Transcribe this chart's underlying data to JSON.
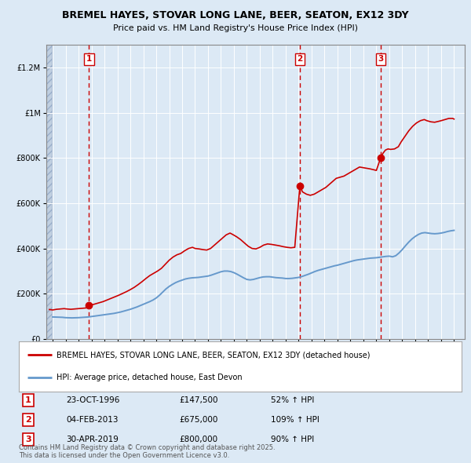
{
  "title": "BREMEL HAYES, STOVAR LONG LANE, BEER, SEATON, EX12 3DY",
  "subtitle": "Price paid vs. HM Land Registry's House Price Index (HPI)",
  "bg_color": "#dce9f5",
  "plot_bg_color": "#dce9f5",
  "hatch_color": "#c0cfe0",
  "transactions": [
    {
      "num": 1,
      "date_x": 1996.81,
      "price": 147500,
      "label": "23-OCT-1996",
      "price_str": "£147,500",
      "pct": "52% ↑ HPI"
    },
    {
      "num": 2,
      "date_x": 2013.09,
      "price": 675000,
      "label": "04-FEB-2013",
      "price_str": "£675,000",
      "pct": "109% ↑ HPI"
    },
    {
      "num": 3,
      "date_x": 2019.33,
      "price": 800000,
      "label": "30-APR-2019",
      "price_str": "£800,000",
      "pct": "90% ↑ HPI"
    }
  ],
  "house_line_color": "#cc0000",
  "hpi_line_color": "#6699cc",
  "ylim": [
    0,
    1300000
  ],
  "xlim_start": 1993.5,
  "xlim_end": 2025.8,
  "hatch_end": 1993.92,
  "xticks": [
    1994,
    1995,
    1996,
    1997,
    1998,
    1999,
    2000,
    2001,
    2002,
    2003,
    2004,
    2005,
    2006,
    2007,
    2008,
    2009,
    2010,
    2011,
    2012,
    2013,
    2014,
    2015,
    2016,
    2017,
    2018,
    2019,
    2020,
    2021,
    2022,
    2023,
    2024,
    2025
  ],
  "yticks": [
    0,
    200000,
    400000,
    600000,
    800000,
    1000000,
    1200000
  ],
  "ytick_labels": [
    "£0",
    "£200K",
    "£400K",
    "£600K",
    "£800K",
    "£1M",
    "£1.2M"
  ],
  "legend_house": "BREMEL HAYES, STOVAR LONG LANE, BEER, SEATON, EX12 3DY (detached house)",
  "legend_hpi": "HPI: Average price, detached house, East Devon",
  "footer": "Contains HM Land Registry data © Crown copyright and database right 2025.\nThis data is licensed under the Open Government Licence v3.0.",
  "hpi_data": [
    [
      1994.0,
      97000
    ],
    [
      1994.25,
      96500
    ],
    [
      1994.5,
      96000
    ],
    [
      1994.75,
      95500
    ],
    [
      1995.0,
      94000
    ],
    [
      1995.25,
      93500
    ],
    [
      1995.5,
      93000
    ],
    [
      1995.75,
      93500
    ],
    [
      1996.0,
      94000
    ],
    [
      1996.25,
      95000
    ],
    [
      1996.5,
      96000
    ],
    [
      1996.75,
      97000
    ],
    [
      1997.0,
      99000
    ],
    [
      1997.25,
      101000
    ],
    [
      1997.5,
      103000
    ],
    [
      1997.75,
      105000
    ],
    [
      1998.0,
      107000
    ],
    [
      1998.25,
      109000
    ],
    [
      1998.5,
      111000
    ],
    [
      1998.75,
      113000
    ],
    [
      1999.0,
      116000
    ],
    [
      1999.25,
      119000
    ],
    [
      1999.5,
      123000
    ],
    [
      1999.75,
      127000
    ],
    [
      2000.0,
      131000
    ],
    [
      2000.25,
      136000
    ],
    [
      2000.5,
      141000
    ],
    [
      2000.75,
      147000
    ],
    [
      2001.0,
      153000
    ],
    [
      2001.25,
      159000
    ],
    [
      2001.5,
      165000
    ],
    [
      2001.75,
      172000
    ],
    [
      2002.0,
      181000
    ],
    [
      2002.25,
      193000
    ],
    [
      2002.5,
      207000
    ],
    [
      2002.75,
      221000
    ],
    [
      2003.0,
      232000
    ],
    [
      2003.25,
      241000
    ],
    [
      2003.5,
      249000
    ],
    [
      2003.75,
      255000
    ],
    [
      2004.0,
      260000
    ],
    [
      2004.25,
      265000
    ],
    [
      2004.5,
      268000
    ],
    [
      2004.75,
      270000
    ],
    [
      2005.0,
      271000
    ],
    [
      2005.25,
      272000
    ],
    [
      2005.5,
      274000
    ],
    [
      2005.75,
      276000
    ],
    [
      2006.0,
      278000
    ],
    [
      2006.25,
      282000
    ],
    [
      2006.5,
      287000
    ],
    [
      2006.75,
      292000
    ],
    [
      2007.0,
      297000
    ],
    [
      2007.25,
      300000
    ],
    [
      2007.5,
      300000
    ],
    [
      2007.75,
      298000
    ],
    [
      2008.0,
      293000
    ],
    [
      2008.25,
      286000
    ],
    [
      2008.5,
      278000
    ],
    [
      2008.75,
      270000
    ],
    [
      2009.0,
      263000
    ],
    [
      2009.25,
      261000
    ],
    [
      2009.5,
      263000
    ],
    [
      2009.75,
      267000
    ],
    [
      2010.0,
      271000
    ],
    [
      2010.25,
      274000
    ],
    [
      2010.5,
      275000
    ],
    [
      2010.75,
      275000
    ],
    [
      2011.0,
      273000
    ],
    [
      2011.25,
      271000
    ],
    [
      2011.5,
      270000
    ],
    [
      2011.75,
      269000
    ],
    [
      2012.0,
      267000
    ],
    [
      2012.25,
      267000
    ],
    [
      2012.5,
      268000
    ],
    [
      2012.75,
      270000
    ],
    [
      2013.0,
      272000
    ],
    [
      2013.25,
      276000
    ],
    [
      2013.5,
      281000
    ],
    [
      2013.75,
      286000
    ],
    [
      2014.0,
      292000
    ],
    [
      2014.25,
      298000
    ],
    [
      2014.5,
      303000
    ],
    [
      2014.75,
      307000
    ],
    [
      2015.0,
      311000
    ],
    [
      2015.25,
      315000
    ],
    [
      2015.5,
      319000
    ],
    [
      2015.75,
      323000
    ],
    [
      2016.0,
      326000
    ],
    [
      2016.25,
      330000
    ],
    [
      2016.5,
      334000
    ],
    [
      2016.75,
      338000
    ],
    [
      2017.0,
      342000
    ],
    [
      2017.25,
      346000
    ],
    [
      2017.5,
      349000
    ],
    [
      2017.75,
      351000
    ],
    [
      2018.0,
      353000
    ],
    [
      2018.25,
      355000
    ],
    [
      2018.5,
      357000
    ],
    [
      2018.75,
      358000
    ],
    [
      2019.0,
      359000
    ],
    [
      2019.25,
      361000
    ],
    [
      2019.5,
      363000
    ],
    [
      2019.75,
      365000
    ],
    [
      2020.0,
      366000
    ],
    [
      2020.25,
      363000
    ],
    [
      2020.5,
      368000
    ],
    [
      2020.75,
      380000
    ],
    [
      2021.0,
      395000
    ],
    [
      2021.25,
      412000
    ],
    [
      2021.5,
      428000
    ],
    [
      2021.75,
      442000
    ],
    [
      2022.0,
      453000
    ],
    [
      2022.25,
      462000
    ],
    [
      2022.5,
      468000
    ],
    [
      2022.75,
      470000
    ],
    [
      2023.0,
      468000
    ],
    [
      2023.25,
      466000
    ],
    [
      2023.5,
      465000
    ],
    [
      2023.75,
      466000
    ],
    [
      2024.0,
      468000
    ],
    [
      2024.25,
      471000
    ],
    [
      2024.5,
      475000
    ],
    [
      2024.75,
      478000
    ],
    [
      2025.0,
      480000
    ]
  ],
  "house_data": [
    [
      1993.75,
      130000
    ],
    [
      1994.0,
      128000
    ],
    [
      1994.1,
      129000
    ],
    [
      1994.2,
      130000
    ],
    [
      1994.3,
      131000
    ],
    [
      1994.5,
      132000
    ],
    [
      1994.7,
      133000
    ],
    [
      1994.9,
      134000
    ],
    [
      1995.0,
      133000
    ],
    [
      1995.2,
      132000
    ],
    [
      1995.4,
      131000
    ],
    [
      1995.6,
      132000
    ],
    [
      1995.8,
      133000
    ],
    [
      1996.0,
      134000
    ],
    [
      1996.2,
      135000
    ],
    [
      1996.4,
      136000
    ],
    [
      1996.6,
      137000
    ],
    [
      1996.81,
      147500
    ],
    [
      1997.0,
      150000
    ],
    [
      1997.3,
      155000
    ],
    [
      1997.6,
      160000
    ],
    [
      1997.9,
      165000
    ],
    [
      1998.2,
      172000
    ],
    [
      1998.5,
      179000
    ],
    [
      1998.8,
      186000
    ],
    [
      1999.1,
      193000
    ],
    [
      1999.4,
      201000
    ],
    [
      1999.7,
      209000
    ],
    [
      2000.0,
      218000
    ],
    [
      2000.3,
      228000
    ],
    [
      2000.6,
      240000
    ],
    [
      2000.9,
      253000
    ],
    [
      2001.2,
      267000
    ],
    [
      2001.5,
      280000
    ],
    [
      2001.8,
      290000
    ],
    [
      2002.1,
      300000
    ],
    [
      2002.4,
      312000
    ],
    [
      2002.7,
      330000
    ],
    [
      2003.0,
      348000
    ],
    [
      2003.3,
      362000
    ],
    [
      2003.6,
      372000
    ],
    [
      2003.9,
      378000
    ],
    [
      2004.2,
      390000
    ],
    [
      2004.5,
      400000
    ],
    [
      2004.8,
      405000
    ],
    [
      2005.0,
      400000
    ],
    [
      2005.3,
      398000
    ],
    [
      2005.6,
      395000
    ],
    [
      2005.9,
      393000
    ],
    [
      2006.2,
      400000
    ],
    [
      2006.5,
      415000
    ],
    [
      2006.8,
      430000
    ],
    [
      2007.1,
      445000
    ],
    [
      2007.4,
      460000
    ],
    [
      2007.7,
      468000
    ],
    [
      2007.9,
      462000
    ],
    [
      2008.2,
      452000
    ],
    [
      2008.5,
      440000
    ],
    [
      2008.8,
      425000
    ],
    [
      2009.1,
      410000
    ],
    [
      2009.4,
      400000
    ],
    [
      2009.7,
      398000
    ],
    [
      2010.0,
      405000
    ],
    [
      2010.3,
      415000
    ],
    [
      2010.6,
      420000
    ],
    [
      2010.9,
      418000
    ],
    [
      2011.2,
      415000
    ],
    [
      2011.5,
      412000
    ],
    [
      2011.8,
      408000
    ],
    [
      2012.1,
      405000
    ],
    [
      2012.4,
      403000
    ],
    [
      2012.7,
      405000
    ],
    [
      2013.09,
      675000
    ],
    [
      2013.3,
      650000
    ],
    [
      2013.6,
      640000
    ],
    [
      2013.9,
      635000
    ],
    [
      2014.2,
      640000
    ],
    [
      2014.5,
      650000
    ],
    [
      2014.8,
      660000
    ],
    [
      2015.1,
      670000
    ],
    [
      2015.4,
      685000
    ],
    [
      2015.7,
      700000
    ],
    [
      2015.9,
      710000
    ],
    [
      2016.2,
      715000
    ],
    [
      2016.5,
      720000
    ],
    [
      2016.8,
      730000
    ],
    [
      2017.1,
      740000
    ],
    [
      2017.4,
      750000
    ],
    [
      2017.7,
      760000
    ],
    [
      2017.9,
      758000
    ],
    [
      2018.2,
      755000
    ],
    [
      2018.5,
      752000
    ],
    [
      2018.8,
      748000
    ],
    [
      2019.0,
      745000
    ],
    [
      2019.33,
      800000
    ],
    [
      2019.5,
      820000
    ],
    [
      2019.7,
      835000
    ],
    [
      2019.9,
      840000
    ],
    [
      2020.1,
      838000
    ],
    [
      2020.4,
      840000
    ],
    [
      2020.7,
      850000
    ],
    [
      2020.9,
      870000
    ],
    [
      2021.2,
      895000
    ],
    [
      2021.5,
      920000
    ],
    [
      2021.8,
      940000
    ],
    [
      2022.1,
      955000
    ],
    [
      2022.4,
      965000
    ],
    [
      2022.7,
      970000
    ],
    [
      2022.9,
      965000
    ],
    [
      2023.2,
      960000
    ],
    [
      2023.5,
      958000
    ],
    [
      2023.8,
      962000
    ],
    [
      2024.0,
      965000
    ],
    [
      2024.3,
      970000
    ],
    [
      2024.6,
      975000
    ],
    [
      2024.9,
      975000
    ],
    [
      2025.0,
      972000
    ]
  ]
}
